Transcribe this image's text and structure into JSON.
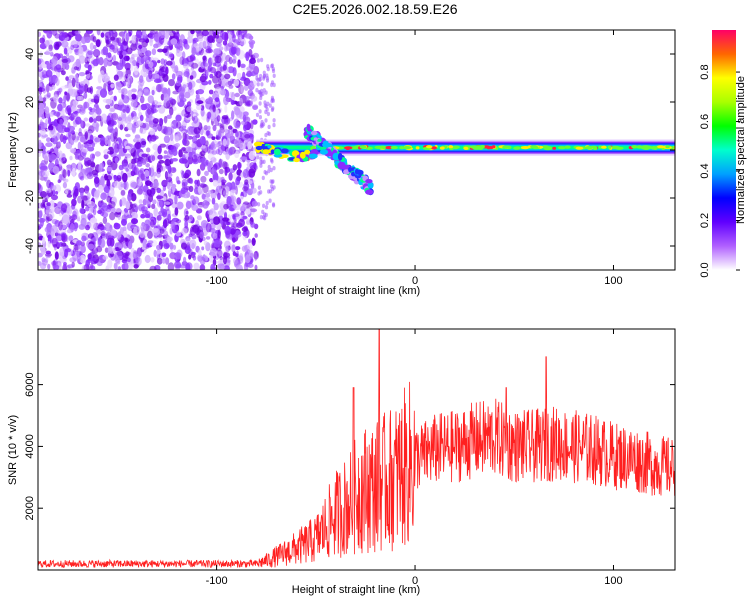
{
  "title": "C2E5.2026.002.18.59.E26",
  "chart_data": [
    {
      "type": "heatmap",
      "xlabel": "Height of straight line (km)",
      "ylabel": "Frequency (Hz)",
      "xlim": [
        -190,
        131
      ],
      "ylim": [
        -50,
        50
      ],
      "xticks": [
        -100,
        0,
        100
      ],
      "yticks": [
        -40,
        -20,
        0,
        20,
        40
      ],
      "colorbar": {
        "label": "Normalized spectral amplitude",
        "range": [
          0,
          0.97
        ],
        "ticks": [
          "0.0",
          "0.2",
          "0.4",
          "0.6",
          "0.8"
        ],
        "colors": [
          "#ffffff",
          "#8800ff",
          "#0000ff",
          "#00ccff",
          "#00ff66",
          "#ffff00",
          "#ff6600",
          "#ff0066"
        ]
      },
      "regions": [
        {
          "name": "noise",
          "x_range": [
            -190,
            -80
          ],
          "y_range": [
            -50,
            50
          ]
        },
        {
          "name": "tone",
          "x_range": [
            -80,
            131
          ],
          "frequency": 1
        },
        {
          "name": "descending feature",
          "x_range": [
            -55,
            -22
          ],
          "frequency_range": [
            8,
            -16
          ]
        }
      ]
    },
    {
      "type": "line",
      "xlabel": "Height of straight line (km)",
      "ylabel": "SNR (10 * v/v)",
      "xlim": [
        -190,
        131
      ],
      "ylim": [
        0,
        7800
      ],
      "xticks": [
        -100,
        0,
        100
      ],
      "yticks": [
        2000,
        4000,
        6000
      ],
      "color": "#ff2020",
      "envelope": {
        "x": [
          -190,
          -80,
          -75,
          -60,
          -50,
          -40,
          -32,
          -28,
          -20,
          -10,
          0,
          10,
          20,
          30,
          40,
          50,
          60,
          70,
          80,
          90,
          100,
          110,
          120,
          131
        ],
        "y": [
          200,
          200,
          300,
          700,
          1000,
          1800,
          2200,
          2600,
          2700,
          3000,
          3600,
          3900,
          4000,
          4200,
          4300,
          4000,
          4000,
          4100,
          4000,
          3900,
          3700,
          3600,
          3400,
          3300
        ]
      },
      "peaks": [
        {
          "x": -31,
          "y": 5900
        },
        {
          "x": -18,
          "y": 7800
        },
        {
          "x": 46,
          "y": 5900
        },
        {
          "x": 66,
          "y": 6900
        }
      ]
    }
  ]
}
